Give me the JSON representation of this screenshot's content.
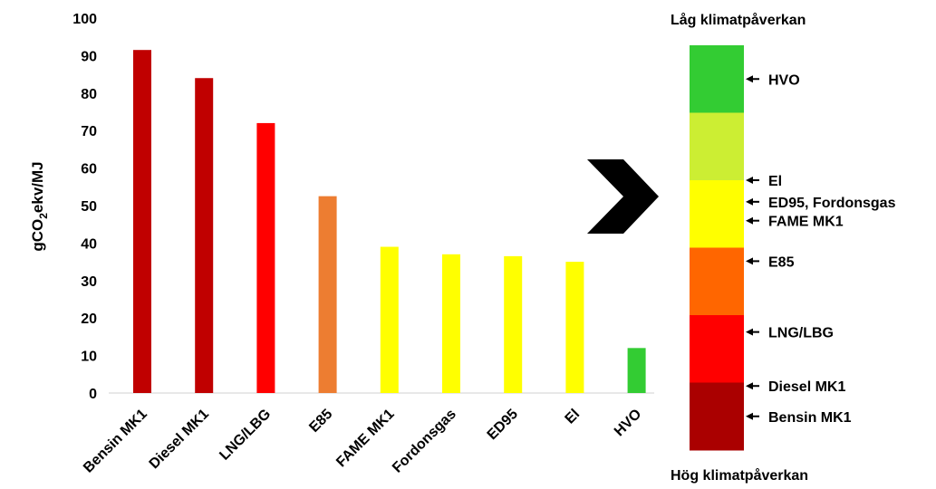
{
  "chart_data": {
    "type": "bar",
    "ylabel_prefix": "gCO",
    "ylabel_sub": "2",
    "ylabel_suffix": "ekv/MJ",
    "ylim": [
      0,
      100
    ],
    "yticks": [
      0,
      10,
      20,
      30,
      40,
      50,
      60,
      70,
      80,
      90,
      100
    ],
    "grid": false,
    "categories": [
      "Bensin MK1",
      "Diesel MK1",
      "LNG/LBG",
      "E85",
      "FAME MK1",
      "Fordonsgas",
      "ED95",
      "El",
      "HVO"
    ],
    "values": [
      91.5,
      84,
      72,
      52.5,
      39,
      37,
      36.5,
      35,
      12
    ],
    "bar_colors": [
      "#c00000",
      "#c00000",
      "#ff0000",
      "#ed7d31",
      "#ffff00",
      "#ffff00",
      "#ffff00",
      "#ffff00",
      "#33cc33"
    ]
  },
  "scale": {
    "top_title": "Låg klimatpåverkan",
    "bottom_title": "Hög klimatpåverkan",
    "bands": [
      "#33cc33",
      "#ccee33",
      "#ffff00",
      "#ff6600",
      "#ff0000",
      "#aa0000"
    ],
    "labels": [
      {
        "text": "HVO",
        "level": 0.5
      },
      {
        "text": "El",
        "level": 2.0
      },
      {
        "text": "ED95, Fordonsgas",
        "level": 2.32
      },
      {
        "text": "FAME MK1",
        "level": 2.6
      },
      {
        "text": "E85",
        "level": 3.2
      },
      {
        "text": "LNG/LBG",
        "level": 4.25
      },
      {
        "text": "Diesel MK1",
        "level": 5.05
      },
      {
        "text": "Bensin MK1",
        "level": 5.5
      }
    ]
  },
  "colors": {
    "arrow": "#000000",
    "text": "#000000"
  }
}
